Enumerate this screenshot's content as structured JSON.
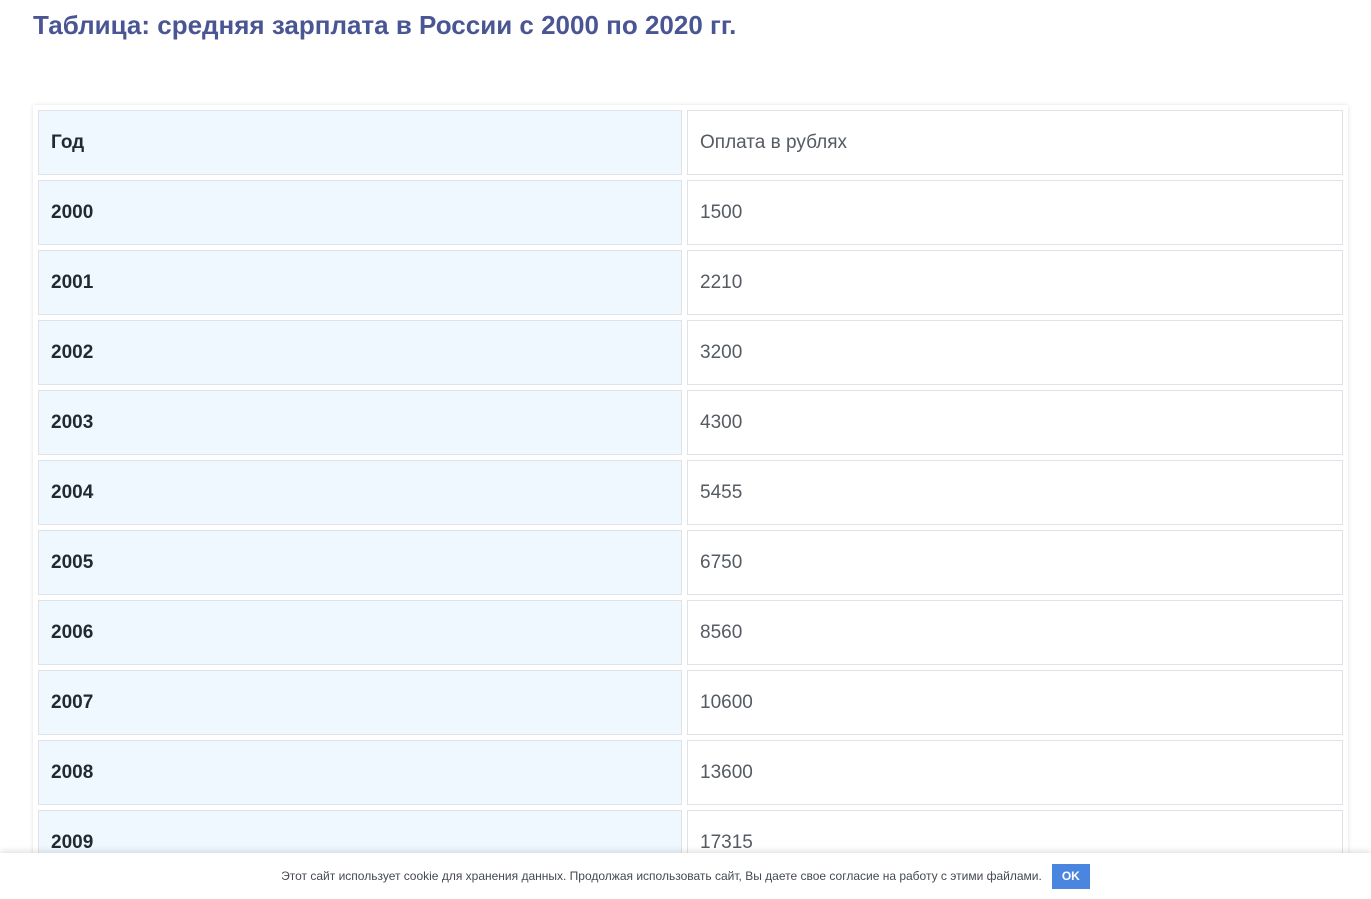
{
  "page": {
    "title": "Таблица: средняя зарплата в России с 2000 по 2020 гг."
  },
  "table": {
    "header": {
      "year": "Год",
      "value": "Оплата в рублях"
    },
    "rows": [
      {
        "year": "2000",
        "value": "1500"
      },
      {
        "year": "2001",
        "value": "2210"
      },
      {
        "year": "2002",
        "value": "3200"
      },
      {
        "year": "2003",
        "value": "4300"
      },
      {
        "year": "2004",
        "value": "5455"
      },
      {
        "year": "2005",
        "value": "6750"
      },
      {
        "year": "2006",
        "value": "8560"
      },
      {
        "year": "2007",
        "value": "10600"
      },
      {
        "year": "2008",
        "value": "13600"
      },
      {
        "year": "2009",
        "value": "17315"
      }
    ]
  },
  "cookie": {
    "text": "Этот сайт использует cookie для хранения данных. Продолжая использовать сайт, Вы даете свое согласие на работу с этими файлами.",
    "ok_label": "OK"
  }
}
